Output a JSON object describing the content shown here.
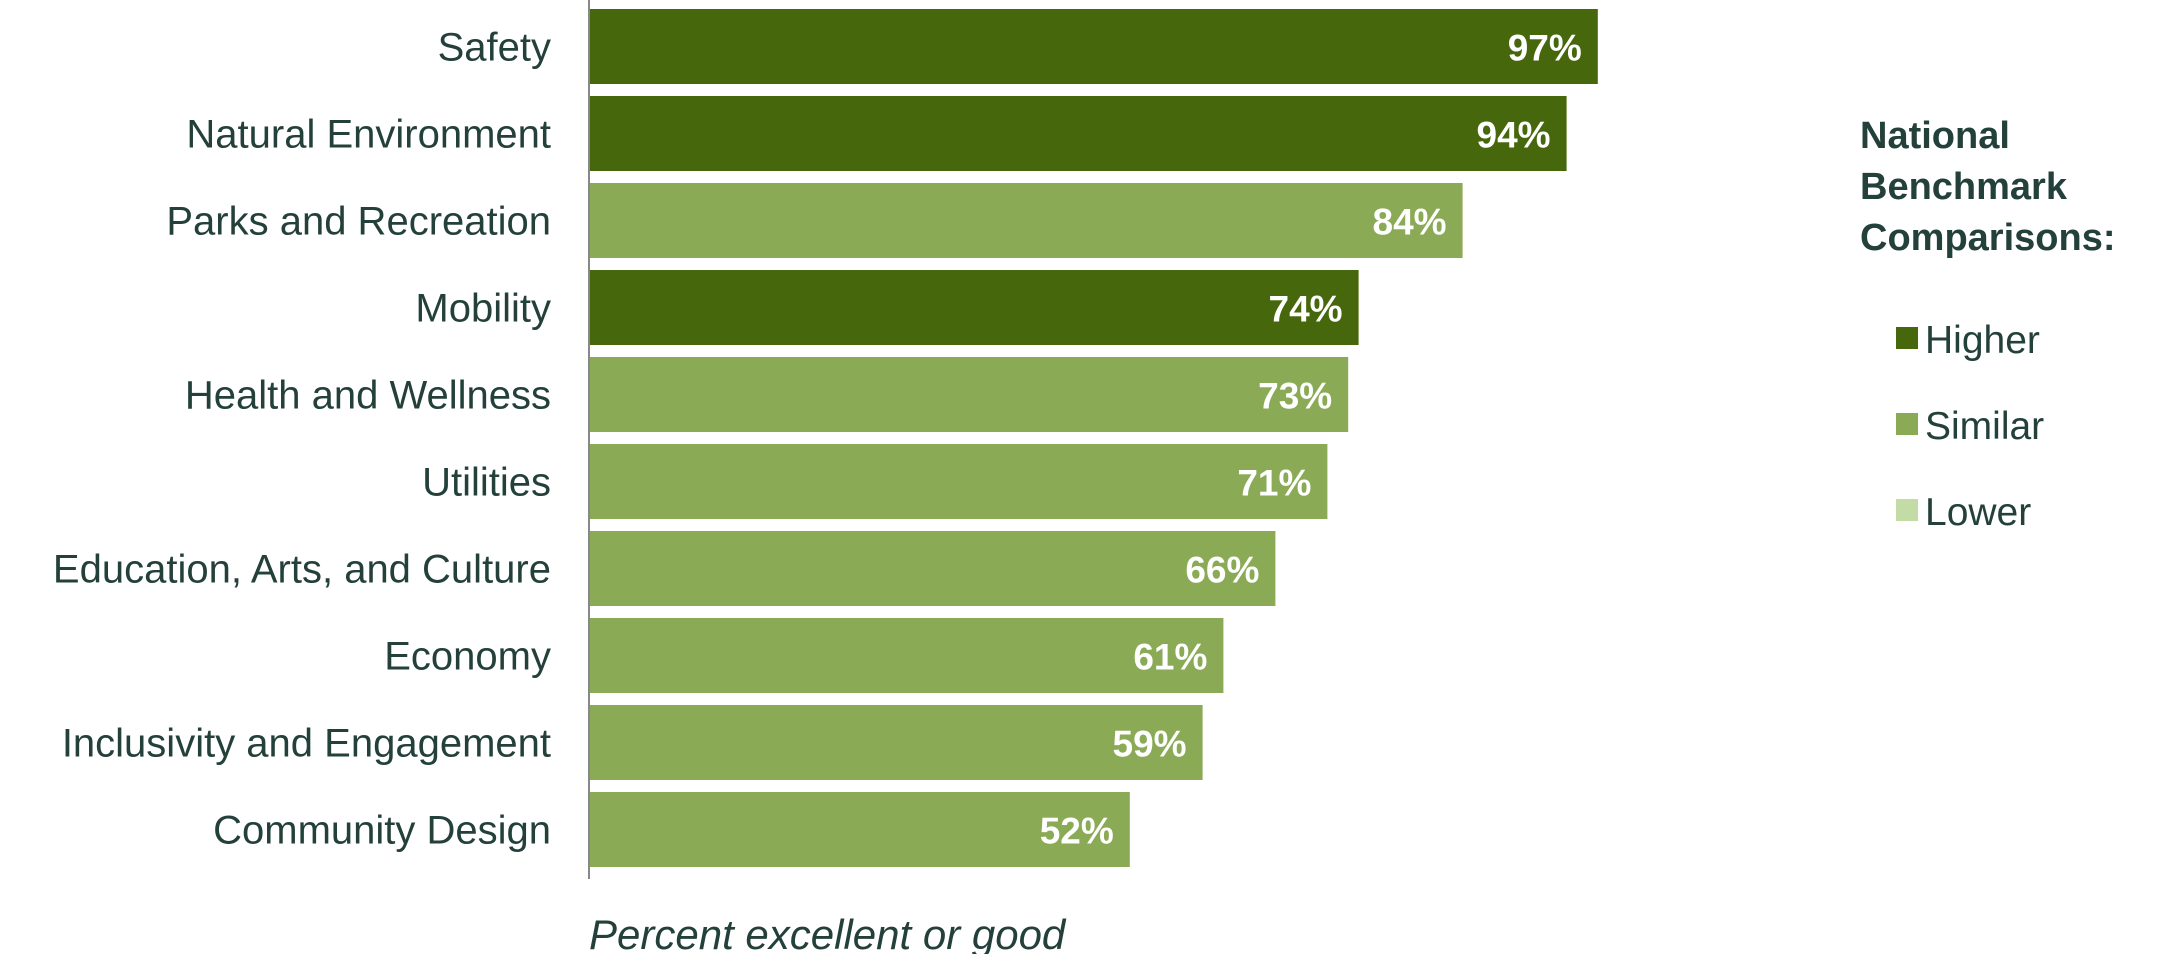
{
  "chart_data": {
    "type": "bar",
    "orientation": "horizontal",
    "categories": [
      "Safety",
      "Natural Environment",
      "Parks and Recreation",
      "Mobility",
      "Health and Wellness",
      "Utilities",
      "Education, Arts, and Culture",
      "Economy",
      "Inclusivity and Engagement",
      "Community Design"
    ],
    "values": [
      97,
      94,
      84,
      74,
      73,
      71,
      66,
      61,
      59,
      52
    ],
    "value_labels": [
      "97%",
      "94%",
      "84%",
      "74%",
      "73%",
      "71%",
      "66%",
      "61%",
      "59%",
      "52%"
    ],
    "comparison": [
      "Higher",
      "Higher",
      "Similar",
      "Higher",
      "Similar",
      "Similar",
      "Similar",
      "Similar",
      "Similar",
      "Similar"
    ],
    "title": "",
    "xlabel": "Percent excellent or good",
    "ylabel": "",
    "xlim": [
      0,
      100
    ],
    "grid": false,
    "legend": {
      "placement": "right",
      "title": [
        "National",
        "Benchmark",
        "Comparisons:"
      ],
      "items": [
        {
          "label": "Higher",
          "color": "#46670b"
        },
        {
          "label": "Similar",
          "color": "#8aaa56"
        },
        {
          "label": "Lower",
          "color": "#c3dba5"
        }
      ]
    }
  }
}
